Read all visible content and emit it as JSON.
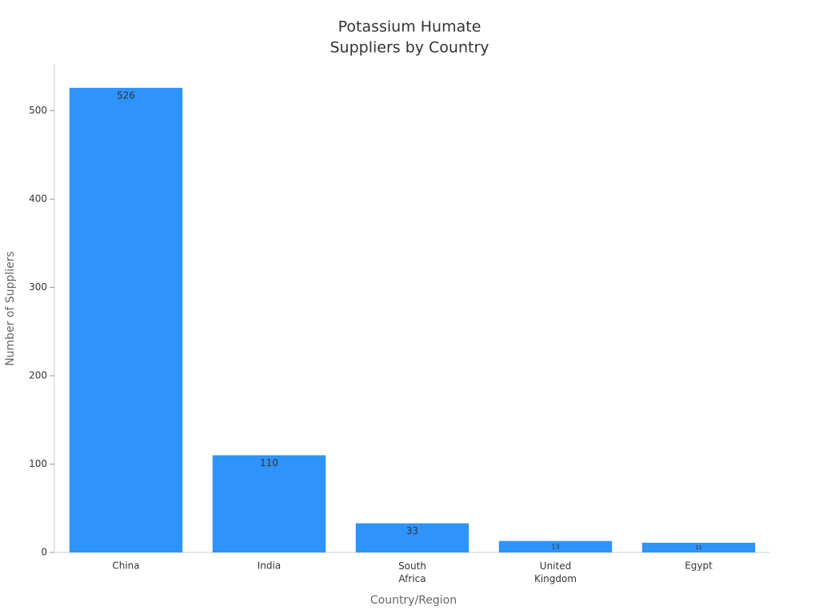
{
  "chart_data": {
    "type": "bar",
    "title": [
      "Potassium Humate",
      "Suppliers by Country"
    ],
    "x_label": "Country/Region",
    "y_label": "Number of Suppliers",
    "categories": [
      "China",
      "India",
      "South Africa",
      "United Kingdom",
      "Egypt"
    ],
    "values": [
      526,
      110,
      33,
      13,
      11
    ],
    "color": "#2e93fa",
    "ylim": [
      0,
      553
    ],
    "yticks": [
      0,
      100,
      200,
      300,
      400,
      500
    ],
    "grid": false
  }
}
